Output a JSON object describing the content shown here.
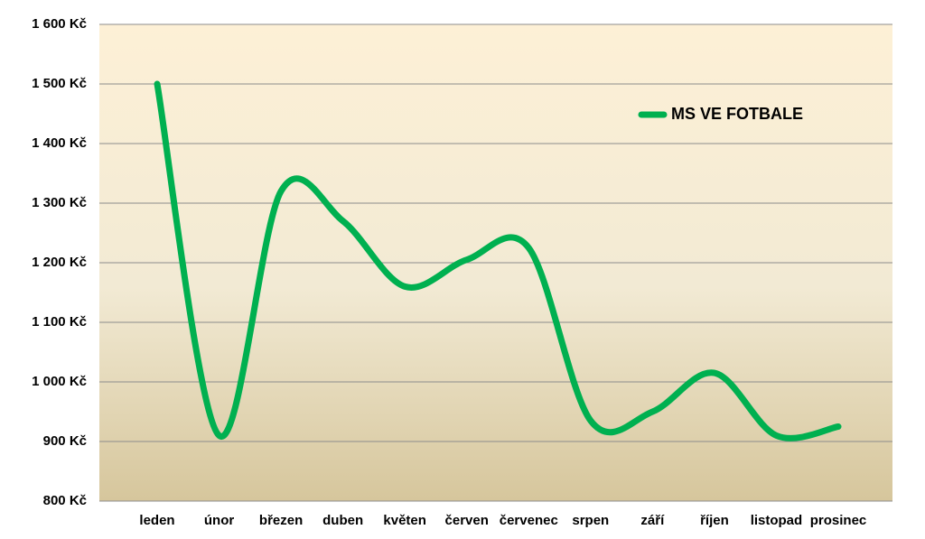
{
  "chart_data": {
    "type": "line",
    "categories": [
      "leden",
      "únor",
      "březen",
      "duben",
      "květen",
      "červen",
      "červenec",
      "srpen",
      "září",
      "říjen",
      "listopad",
      "prosinec"
    ],
    "series": [
      {
        "name": "MS VE FOTBALE",
        "color": "#00b050",
        "values": [
          1500,
          910,
          1320,
          1270,
          1160,
          1205,
          1225,
          935,
          950,
          1015,
          910,
          925
        ]
      }
    ],
    "ylim": [
      800,
      1600
    ],
    "yticks": [
      {
        "value": 800,
        "label": "800 Kč"
      },
      {
        "value": 900,
        "label": "900 Kč"
      },
      {
        "value": 1000,
        "label": "1 000 Kč"
      },
      {
        "value": 1100,
        "label": "1 100 Kč"
      },
      {
        "value": 1200,
        "label": "1 200 Kč"
      },
      {
        "value": 1300,
        "label": "1 300 Kč"
      },
      {
        "value": 1400,
        "label": "1 400 Kč"
      },
      {
        "value": 1500,
        "label": "1 500 Kč"
      },
      {
        "value": 1600,
        "label": "1 600 Kč"
      }
    ],
    "grid": true,
    "smooth": true,
    "legend": "upper right"
  }
}
